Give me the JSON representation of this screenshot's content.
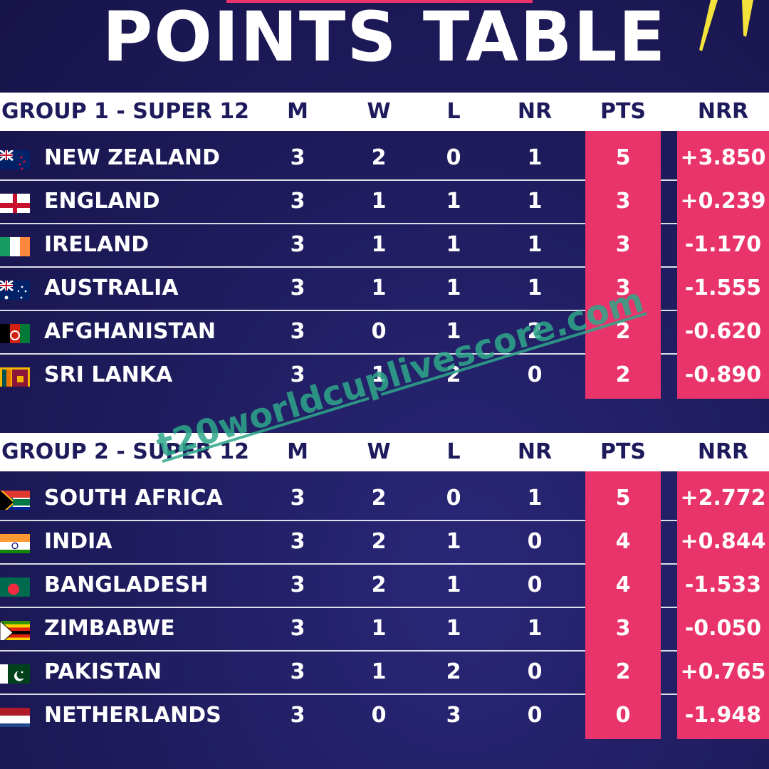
{
  "title": "POINTS TABLE",
  "columns": [
    "M",
    "W",
    "L",
    "NR",
    "PTS",
    "NRR"
  ],
  "groups": [
    {
      "name": "GROUP 1 - SUPER 12",
      "teams": [
        {
          "name": "NEW ZEALAND",
          "flag": "new-zealand-flag",
          "m": "3",
          "w": "2",
          "l": "0",
          "nr": "1",
          "pts": "5",
          "nrr": "+3.850"
        },
        {
          "name": "ENGLAND",
          "flag": "england-flag",
          "m": "3",
          "w": "1",
          "l": "1",
          "nr": "1",
          "pts": "3",
          "nrr": "+0.239"
        },
        {
          "name": "IRELAND",
          "flag": "ireland-flag",
          "m": "3",
          "w": "1",
          "l": "1",
          "nr": "1",
          "pts": "3",
          "nrr": "-1.170"
        },
        {
          "name": "AUSTRALIA",
          "flag": "australia-flag",
          "m": "3",
          "w": "1",
          "l": "1",
          "nr": "1",
          "pts": "3",
          "nrr": "-1.555"
        },
        {
          "name": "AFGHANISTAN",
          "flag": "afghanistan-flag",
          "m": "3",
          "w": "0",
          "l": "1",
          "nr": "2",
          "pts": "2",
          "nrr": "-0.620"
        },
        {
          "name": "SRI LANKA",
          "flag": "sri-lanka-flag",
          "m": "3",
          "w": "1",
          "l": "2",
          "nr": "0",
          "pts": "2",
          "nrr": "-0.890"
        }
      ]
    },
    {
      "name": "GROUP 2 - SUPER 12",
      "teams": [
        {
          "name": "SOUTH AFRICA",
          "flag": "south-africa-flag",
          "m": "3",
          "w": "2",
          "l": "0",
          "nr": "1",
          "pts": "5",
          "nrr": "+2.772"
        },
        {
          "name": "INDIA",
          "flag": "india-flag",
          "m": "3",
          "w": "2",
          "l": "1",
          "nr": "0",
          "pts": "4",
          "nrr": "+0.844"
        },
        {
          "name": "BANGLADESH",
          "flag": "bangladesh-flag",
          "m": "3",
          "w": "2",
          "l": "1",
          "nr": "0",
          "pts": "4",
          "nrr": "-1.533"
        },
        {
          "name": "ZIMBABWE",
          "flag": "zimbabwe-flag",
          "m": "3",
          "w": "1",
          "l": "1",
          "nr": "1",
          "pts": "3",
          "nrr": "-0.050"
        },
        {
          "name": "PAKISTAN",
          "flag": "pakistan-flag",
          "m": "3",
          "w": "1",
          "l": "2",
          "nr": "0",
          "pts": "2",
          "nrr": "+0.765"
        },
        {
          "name": "NETHERLANDS",
          "flag": "netherlands-flag",
          "m": "3",
          "w": "0",
          "l": "3",
          "nr": "0",
          "pts": "0",
          "nrr": "-1.948"
        }
      ]
    }
  ],
  "watermark": "t20worldcuplivescore.com",
  "colors": {
    "background": "#1e1b5c",
    "highlight": "#e8336b",
    "header_bg": "#ffffff",
    "header_text": "#1e1b5c",
    "watermark": "#2ea88a",
    "bolt": "#f2e23a"
  }
}
